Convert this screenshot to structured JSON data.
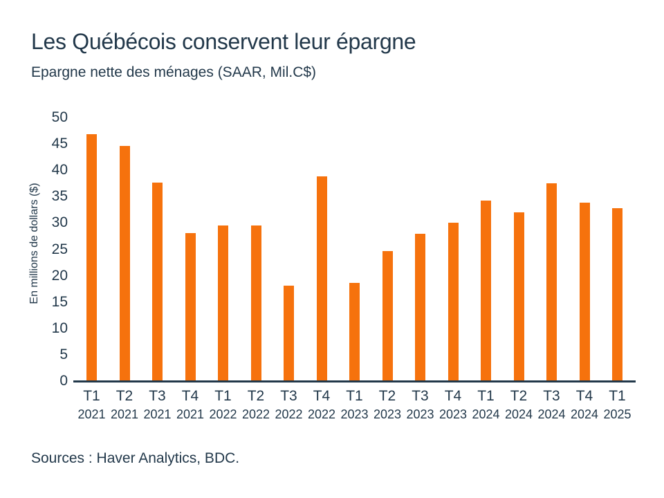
{
  "page": {
    "title": "Les Québécois conservent leur épargne",
    "subtitle": "Epargne nette des ménages (SAAR, Mil.C$)",
    "source": "Sources : Haver Analytics, BDC."
  },
  "colors": {
    "bar": "#f6720d",
    "text": "#22384a",
    "axis": "#22384a",
    "background": "#ffffff"
  },
  "chart_data": {
    "type": "bar",
    "title": "Les Québécois conservent leur épargne",
    "subtitle": "Epargne nette des ménages (SAAR, Mil.C$)",
    "xlabel": "",
    "ylabel": "En millions de dollars ($)",
    "ylim": [
      0,
      50
    ],
    "ytick_step": 5,
    "grid": false,
    "legend": "none",
    "bar_color": "#f6720d",
    "categories": [
      "T1 2021",
      "T2 2021",
      "T3 2021",
      "T4 2021",
      "T1 2022",
      "T2 2022",
      "T3 2022",
      "T4 2022",
      "T1 2023",
      "T2 2023",
      "T3 2023",
      "T4 2023",
      "T1 2024",
      "T2 2024",
      "T3 2024",
      "T4 2024",
      "T1 2025"
    ],
    "quarters": [
      "T1",
      "T2",
      "T3",
      "T4",
      "T1",
      "T2",
      "T3",
      "T4",
      "T1",
      "T2",
      "T3",
      "T4",
      "T1",
      "T2",
      "T3",
      "T4",
      "T1"
    ],
    "years": [
      "2021",
      "2021",
      "2021",
      "2021",
      "2022",
      "2022",
      "2022",
      "2022",
      "2023",
      "2023",
      "2023",
      "2023",
      "2024",
      "2024",
      "2024",
      "2024",
      "2025"
    ],
    "values": [
      46.9,
      44.6,
      37.7,
      28.1,
      29.5,
      29.5,
      18.1,
      38.9,
      18.7,
      24.7,
      27.9,
      30.0,
      34.3,
      32.0,
      37.6,
      33.8,
      32.8
    ]
  }
}
